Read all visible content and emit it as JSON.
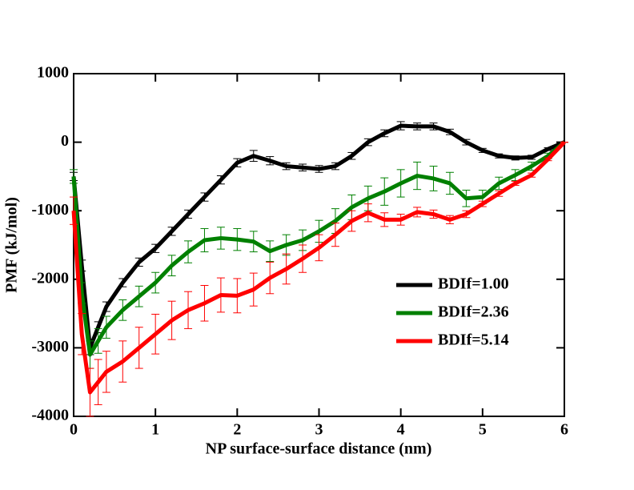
{
  "chart_data": {
    "type": "line",
    "x_label": "NP surface-surface distance (nm)",
    "y_label": "PMF (kJ/mol)",
    "x": [
      0,
      0.1,
      0.2,
      0.3,
      0.4,
      0.6,
      0.8,
      1.0,
      1.2,
      1.4,
      1.6,
      1.8,
      2.0,
      2.2,
      2.4,
      2.6,
      2.8,
      3.0,
      3.2,
      3.4,
      3.6,
      3.8,
      4.0,
      4.2,
      4.4,
      4.6,
      4.8,
      5.0,
      5.2,
      5.4,
      5.6,
      5.8,
      6.0
    ],
    "xlim": [
      0,
      6
    ],
    "xticks": [
      0,
      1,
      2,
      3,
      4,
      5,
      6
    ],
    "ylim": [
      -4000,
      1000
    ],
    "yticks": [
      -4000,
      -3000,
      -2000,
      -1000,
      0,
      1000
    ],
    "legend": "lower right",
    "series": [
      {
        "name": "BDIf=1.00",
        "color": "#000000",
        "values": [
          -500,
          -1800,
          -3000,
          -2700,
          -2400,
          -2050,
          -1750,
          -1550,
          -1300,
          -1050,
          -800,
          -550,
          -300,
          -200,
          -270,
          -350,
          -370,
          -390,
          -350,
          -200,
          0,
          130,
          240,
          230,
          230,
          150,
          0,
          -120,
          -200,
          -230,
          -220,
          -100,
          0
        ],
        "errors": [
          60,
          80,
          100,
          80,
          70,
          60,
          60,
          60,
          60,
          60,
          60,
          60,
          60,
          80,
          60,
          50,
          50,
          50,
          50,
          50,
          50,
          50,
          60,
          50,
          50,
          40,
          40,
          30,
          30,
          30,
          30,
          20,
          0
        ]
      },
      {
        "name": "BDIf=2.36",
        "color": "#008000",
        "values": [
          -500,
          -2200,
          -3100,
          -2900,
          -2700,
          -2450,
          -2250,
          -2050,
          -1800,
          -1600,
          -1430,
          -1400,
          -1420,
          -1450,
          -1590,
          -1500,
          -1430,
          -1300,
          -1150,
          -950,
          -820,
          -720,
          -600,
          -490,
          -530,
          -600,
          -820,
          -800,
          -600,
          -480,
          -350,
          -200,
          0
        ],
        "errors": [
          100,
          150,
          200,
          180,
          160,
          150,
          150,
          150,
          150,
          160,
          170,
          160,
          160,
          150,
          150,
          150,
          150,
          160,
          180,
          180,
          180,
          200,
          200,
          200,
          180,
          160,
          120,
          100,
          90,
          80,
          60,
          40,
          0
        ]
      },
      {
        "name": "BDIf=5.14",
        "color": "#ff0000",
        "values": [
          -1000,
          -2800,
          -3650,
          -3500,
          -3350,
          -3200,
          -3000,
          -2800,
          -2600,
          -2450,
          -2350,
          -2230,
          -2240,
          -2150,
          -1980,
          -1850,
          -1700,
          -1540,
          -1350,
          -1150,
          -1030,
          -1130,
          -1130,
          -1020,
          -1050,
          -1130,
          -1050,
          -900,
          -750,
          -600,
          -480,
          -250,
          0
        ],
        "errors": [
          200,
          300,
          350,
          330,
          300,
          300,
          300,
          290,
          280,
          270,
          260,
          250,
          250,
          240,
          230,
          220,
          200,
          190,
          170,
          150,
          130,
          100,
          80,
          70,
          60,
          60,
          50,
          40,
          40,
          30,
          30,
          20,
          0
        ]
      }
    ]
  }
}
